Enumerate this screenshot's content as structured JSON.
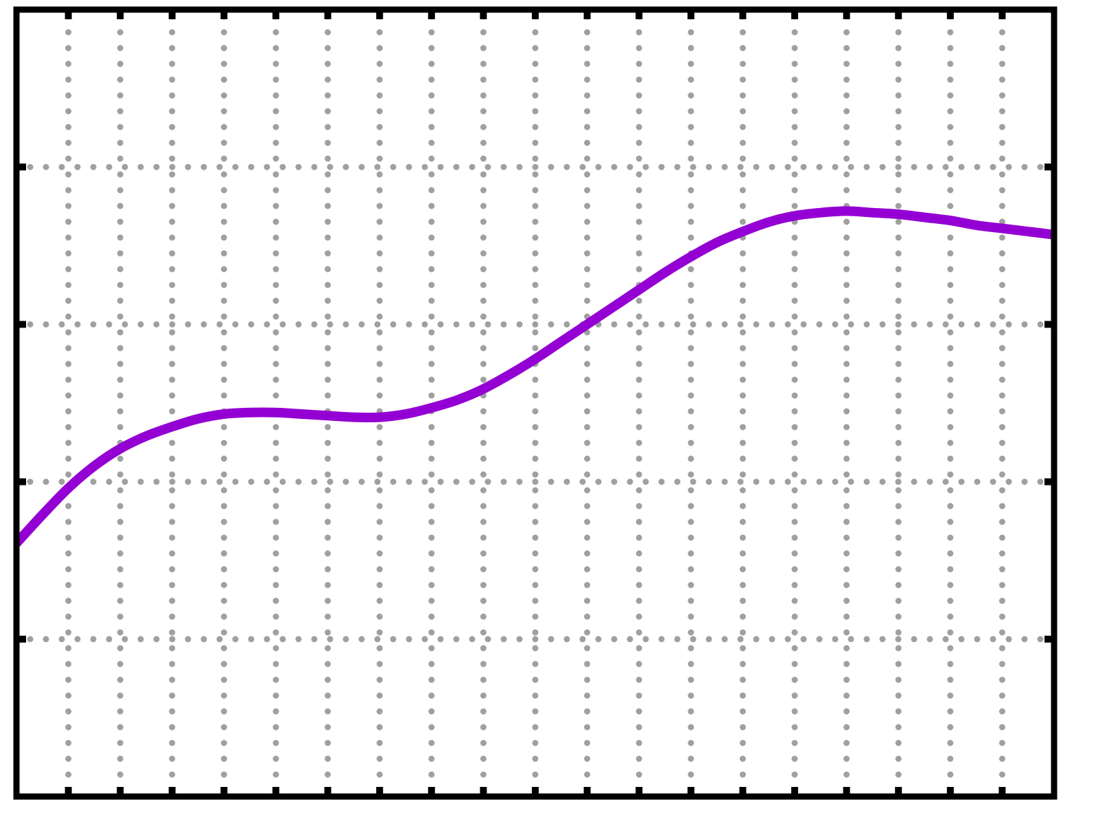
{
  "chart_data": {
    "type": "line",
    "title": "",
    "xlabel": "",
    "ylabel": "",
    "xlim": [
      0,
      20
    ],
    "ylim": [
      0,
      5
    ],
    "x_minor_ticks": [
      1,
      2,
      3,
      4,
      5,
      6,
      7,
      8,
      9,
      10,
      11,
      12,
      13,
      14,
      15,
      16,
      17,
      18,
      19
    ],
    "y_major_ticks": [
      1,
      2,
      3,
      4
    ],
    "grid": true,
    "grid_style": "dotted",
    "legend": "none",
    "colors": {
      "line": "#9400d3",
      "grid": "#a0a0a0",
      "frame": "#000000"
    },
    "series": [
      {
        "x": [
          0,
          0.5,
          1,
          1.5,
          2,
          2.5,
          3,
          3.5,
          4,
          4.5,
          5,
          5.5,
          6,
          6.5,
          7,
          7.5,
          8,
          8.5,
          9,
          9.5,
          10,
          10.5,
          11,
          11.5,
          12,
          12.5,
          13,
          13.5,
          14,
          14.5,
          15,
          15.5,
          16,
          16.5,
          17,
          17.5,
          18,
          18.5,
          19,
          19.5,
          20
        ],
        "y": [
          1.61,
          1.79,
          1.96,
          2.1,
          2.21,
          2.29,
          2.35,
          2.4,
          2.43,
          2.44,
          2.44,
          2.43,
          2.42,
          2.41,
          2.41,
          2.43,
          2.47,
          2.52,
          2.59,
          2.68,
          2.78,
          2.89,
          3.0,
          3.11,
          3.22,
          3.33,
          3.43,
          3.52,
          3.59,
          3.65,
          3.69,
          3.71,
          3.72,
          3.71,
          3.7,
          3.68,
          3.66,
          3.63,
          3.61,
          3.59,
          3.57
        ]
      }
    ]
  }
}
